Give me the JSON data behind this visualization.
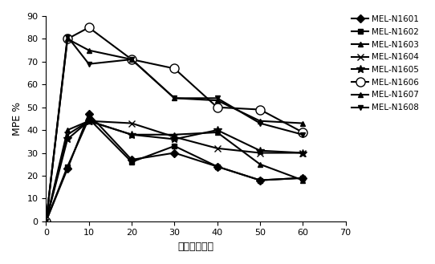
{
  "x": [
    0,
    5,
    10,
    20,
    30,
    40,
    50,
    60
  ],
  "series": [
    {
      "label": "MEL-N1601",
      "values": [
        0,
        23,
        47,
        27,
        30,
        24,
        18,
        19
      ],
      "marker": "D",
      "markersize": 5,
      "markerfacecolor": "black",
      "markeredgecolor": "black"
    },
    {
      "label": "MEL-N1602",
      "values": [
        0,
        24,
        45,
        26,
        33,
        24,
        18,
        19
      ],
      "marker": "s",
      "markersize": 5,
      "markerfacecolor": "black",
      "markeredgecolor": "black"
    },
    {
      "label": "MEL-N1603",
      "values": [
        0,
        40,
        44,
        38,
        38,
        39,
        25,
        18
      ],
      "marker": "^",
      "markersize": 5,
      "markerfacecolor": "black",
      "markeredgecolor": "black"
    },
    {
      "label": "MEL-N1604",
      "values": [
        0,
        38,
        44,
        43,
        37,
        32,
        30,
        30
      ],
      "marker": "x",
      "markersize": 6,
      "markerfacecolor": "black",
      "markeredgecolor": "black"
    },
    {
      "label": "MEL-N1605",
      "values": [
        0,
        36,
        44,
        38,
        36,
        40,
        31,
        30
      ],
      "marker": "*",
      "markersize": 7,
      "markerfacecolor": "black",
      "markeredgecolor": "black"
    },
    {
      "label": "MEL-N1606",
      "values": [
        0,
        80,
        85,
        71,
        67,
        50,
        49,
        39
      ],
      "marker": "o",
      "markersize": 8,
      "markerfacecolor": "white",
      "markeredgecolor": "black"
    },
    {
      "label": "MEL-N1607",
      "values": [
        0,
        80,
        75,
        71,
        54,
        53,
        44,
        43
      ],
      "marker": "^",
      "markersize": 5,
      "markerfacecolor": "black",
      "markeredgecolor": "black"
    },
    {
      "label": "MEL-N1608",
      "values": [
        0,
        81,
        69,
        71,
        54,
        54,
        43,
        38
      ],
      "marker": "v",
      "markersize": 5,
      "markerfacecolor": "black",
      "markeredgecolor": "black"
    }
  ],
  "xlabel": "时间（分钟）",
  "ylabel": "MPE %",
  "xlim": [
    0,
    70
  ],
  "ylim": [
    0,
    90
  ],
  "xticks": [
    0,
    10,
    20,
    30,
    40,
    50,
    60,
    70
  ],
  "yticks": [
    0,
    10,
    20,
    30,
    40,
    50,
    60,
    70,
    80,
    90
  ],
  "legend_fontsize": 7.5,
  "axis_fontsize": 9,
  "tick_fontsize": 8,
  "linewidth": 1.5,
  "background_color": "#ffffff"
}
